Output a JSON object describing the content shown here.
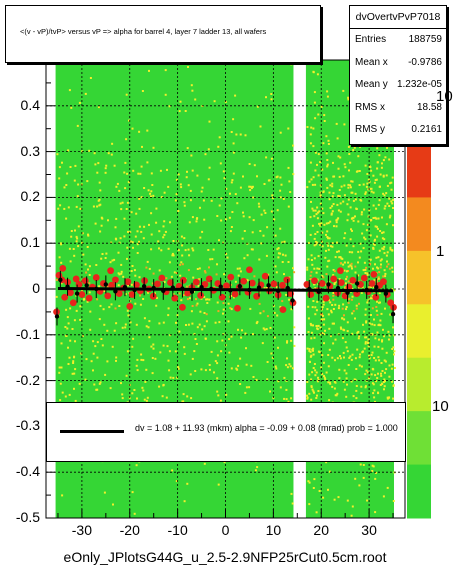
{
  "title": "<(v - vP)/tvP> versus   vP => alpha for barrel 4, layer 7 ladder 13, all wafers",
  "stats": {
    "name": "dvOvertvPvP7018",
    "rows": [
      {
        "label": "Entries",
        "value": "188759"
      },
      {
        "label": "Mean x",
        "value": "-0.9786"
      },
      {
        "label": "Mean y",
        "value": "1.232e-05"
      },
      {
        "label": "RMS x",
        "value": "18.58"
      },
      {
        "label": "RMS y",
        "value": "0.2161"
      }
    ]
  },
  "fit_text": "dv =    1.08 +  11.93 (mkm) alpha =    -0.09 +  0.08 (mrad) prob = 1.000",
  "footer": "eOnly_JPlotsG44G_u_2.5-2.9NFP25rCut0.5cm.root",
  "colors": {
    "band_green": "#35d635",
    "band_yellow": "#f2ef2c",
    "band_orange": "#f6a524",
    "points": "#e8231c",
    "profile": "#000000"
  },
  "chart_data": {
    "type": "heatmap",
    "xlim": [
      -37.5,
      37.5
    ],
    "ylim": [
      -0.5,
      0.5
    ],
    "x_ticks": [
      -30,
      -20,
      -10,
      0,
      10,
      20,
      30
    ],
    "x_tick_labels": [
      "-30",
      "-20",
      "-10",
      "0",
      "10",
      "20",
      "30"
    ],
    "y_ticks": [
      0.4,
      0.3,
      0.2,
      0.1,
      0,
      -0.1,
      -0.2,
      -0.3,
      -0.4,
      -0.5
    ],
    "y_tick_labels": [
      "0.4",
      "0.3",
      "0.2",
      "0.1",
      "0",
      "-0.1",
      "-0.2",
      "-0.3",
      "-0.4",
      "-0.5"
    ],
    "z_scale": "log",
    "z_tick_labels": [
      "10",
      "1",
      "10"
    ],
    "grid": true,
    "occupied_x_ranges": [
      [
        -35.5,
        14.2
      ],
      [
        16.8,
        35.2
      ]
    ],
    "profile_points": [
      {
        "x": -35.2,
        "y": -0.06
      },
      {
        "x": -34.5,
        "y": 0.02
      },
      {
        "x": -33.0,
        "y": 0.005
      },
      {
        "x": -31.0,
        "y": -0.01
      },
      {
        "x": -29.0,
        "y": 0.008
      },
      {
        "x": -27.0,
        "y": 0.0
      },
      {
        "x": -25.0,
        "y": 0.01
      },
      {
        "x": -23.0,
        "y": -0.005
      },
      {
        "x": -21.0,
        "y": 0.004
      },
      {
        "x": -19.0,
        "y": -0.002
      },
      {
        "x": -17.0,
        "y": 0.006
      },
      {
        "x": -15.0,
        "y": 0.002
      },
      {
        "x": -13.0,
        "y": -0.004
      },
      {
        "x": -11.0,
        "y": 0.003
      },
      {
        "x": -9.0,
        "y": 0.001
      },
      {
        "x": -7.0,
        "y": -0.006
      },
      {
        "x": -5.0,
        "y": 0.004
      },
      {
        "x": -3.0,
        "y": 0.0
      },
      {
        "x": -1.0,
        "y": 0.005
      },
      {
        "x": 1.0,
        "y": -0.003
      },
      {
        "x": 3.0,
        "y": 0.006
      },
      {
        "x": 5.0,
        "y": -0.002
      },
      {
        "x": 7.0,
        "y": 0.003
      },
      {
        "x": 9.0,
        "y": 0.008
      },
      {
        "x": 11.0,
        "y": -0.004
      },
      {
        "x": 13.0,
        "y": 0.002
      },
      {
        "x": 14.0,
        "y": -0.025
      },
      {
        "x": 17.5,
        "y": 0.0
      },
      {
        "x": 19.5,
        "y": -0.006
      },
      {
        "x": 21.5,
        "y": 0.01
      },
      {
        "x": 23.5,
        "y": 0.002
      },
      {
        "x": 25.5,
        "y": -0.008
      },
      {
        "x": 27.5,
        "y": 0.012
      },
      {
        "x": 29.5,
        "y": -0.002
      },
      {
        "x": 31.5,
        "y": 0.004
      },
      {
        "x": 33.5,
        "y": -0.01
      },
      {
        "x": 35.0,
        "y": -0.055
      }
    ],
    "red_points": [
      {
        "x": -35.3,
        "y": -0.05
      },
      {
        "x": -34.8,
        "y": 0.03
      },
      {
        "x": -34.2,
        "y": 0.02
      },
      {
        "x": -33.6,
        "y": -0.018
      },
      {
        "x": -33.0,
        "y": 0.015
      },
      {
        "x": -32.4,
        "y": -0.008
      },
      {
        "x": -31.8,
        "y": -0.03
      },
      {
        "x": -31.2,
        "y": 0.022
      },
      {
        "x": -30.6,
        "y": 0.01
      },
      {
        "x": -30.0,
        "y": -0.012
      },
      {
        "x": -29.3,
        "y": 0.018
      },
      {
        "x": -28.5,
        "y": -0.02
      },
      {
        "x": -27.8,
        "y": 0.004
      },
      {
        "x": -27.0,
        "y": 0.025
      },
      {
        "x": -26.2,
        "y": -0.005
      },
      {
        "x": -25.5,
        "y": 0.012
      },
      {
        "x": -24.6,
        "y": -0.015
      },
      {
        "x": -23.8,
        "y": 0.008
      },
      {
        "x": -23.0,
        "y": 0.02
      },
      {
        "x": -22.2,
        "y": -0.01
      },
      {
        "x": -21.3,
        "y": 0.002
      },
      {
        "x": -20.4,
        "y": 0.016
      },
      {
        "x": -19.5,
        "y": -0.012
      },
      {
        "x": -18.6,
        "y": 0.009
      },
      {
        "x": -17.8,
        "y": -0.004
      },
      {
        "x": -16.9,
        "y": 0.018
      },
      {
        "x": -16.0,
        "y": 0.0
      },
      {
        "x": -15.1,
        "y": -0.016
      },
      {
        "x": -14.2,
        "y": 0.011
      },
      {
        "x": -13.3,
        "y": 0.024
      },
      {
        "x": -12.4,
        "y": -0.006
      },
      {
        "x": -11.5,
        "y": 0.014
      },
      {
        "x": -10.6,
        "y": -0.02
      },
      {
        "x": -9.7,
        "y": 0.006
      },
      {
        "x": -8.8,
        "y": 0.019
      },
      {
        "x": -7.9,
        "y": -0.009
      },
      {
        "x": -7.0,
        "y": 0.003
      },
      {
        "x": -6.1,
        "y": 0.015
      },
      {
        "x": -5.2,
        "y": -0.014
      },
      {
        "x": -4.3,
        "y": 0.01
      },
      {
        "x": -3.4,
        "y": 0.022
      },
      {
        "x": -2.5,
        "y": -0.003
      },
      {
        "x": -1.6,
        "y": 0.012
      },
      {
        "x": -0.7,
        "y": -0.018
      },
      {
        "x": 0.2,
        "y": 0.007
      },
      {
        "x": 1.1,
        "y": 0.026
      },
      {
        "x": 2.0,
        "y": -0.011
      },
      {
        "x": 2.9,
        "y": 0.004
      },
      {
        "x": 3.8,
        "y": 0.017
      },
      {
        "x": 4.7,
        "y": -0.007
      },
      {
        "x": 5.6,
        "y": 0.013
      },
      {
        "x": 6.5,
        "y": -0.016
      },
      {
        "x": 7.4,
        "y": 0.009
      },
      {
        "x": 8.3,
        "y": 0.028
      },
      {
        "x": 9.2,
        "y": -0.004
      },
      {
        "x": 10.1,
        "y": 0.011
      },
      {
        "x": 11.0,
        "y": -0.013
      },
      {
        "x": 11.9,
        "y": 0.008
      },
      {
        "x": 12.8,
        "y": 0.02
      },
      {
        "x": 13.6,
        "y": -0.01
      },
      {
        "x": 14.1,
        "y": -0.03
      },
      {
        "x": 17.0,
        "y": 0.01
      },
      {
        "x": 17.8,
        "y": -0.012
      },
      {
        "x": 18.6,
        "y": 0.018
      },
      {
        "x": 19.4,
        "y": -0.004
      },
      {
        "x": 20.2,
        "y": 0.012
      },
      {
        "x": 21.0,
        "y": -0.02
      },
      {
        "x": 21.8,
        "y": 0.006
      },
      {
        "x": 22.6,
        "y": 0.022
      },
      {
        "x": 23.4,
        "y": -0.008
      },
      {
        "x": 24.2,
        "y": 0.014
      },
      {
        "x": 25.0,
        "y": -0.015
      },
      {
        "x": 25.8,
        "y": 0.004
      },
      {
        "x": 26.6,
        "y": 0.019
      },
      {
        "x": 27.4,
        "y": -0.01
      },
      {
        "x": 28.2,
        "y": 0.01
      },
      {
        "x": 29.0,
        "y": 0.024
      },
      {
        "x": 29.8,
        "y": -0.006
      },
      {
        "x": 30.6,
        "y": 0.012
      },
      {
        "x": 31.4,
        "y": -0.018
      },
      {
        "x": 32.2,
        "y": 0.008
      },
      {
        "x": 33.0,
        "y": 0.016
      },
      {
        "x": 33.8,
        "y": -0.012
      },
      {
        "x": 34.5,
        "y": -0.03
      },
      {
        "x": 35.1,
        "y": -0.04
      },
      {
        "x": -34.0,
        "y": 0.045
      },
      {
        "x": -24.0,
        "y": 0.04
      },
      {
        "x": -9.0,
        "y": -0.04
      },
      {
        "x": 5.0,
        "y": 0.042
      },
      {
        "x": 12.0,
        "y": -0.045
      },
      {
        "x": 24.0,
        "y": 0.04
      },
      {
        "x": 31.0,
        "y": 0.032
      },
      {
        "x": -20.0,
        "y": -0.038
      },
      {
        "x": 2.5,
        "y": -0.042
      }
    ]
  }
}
